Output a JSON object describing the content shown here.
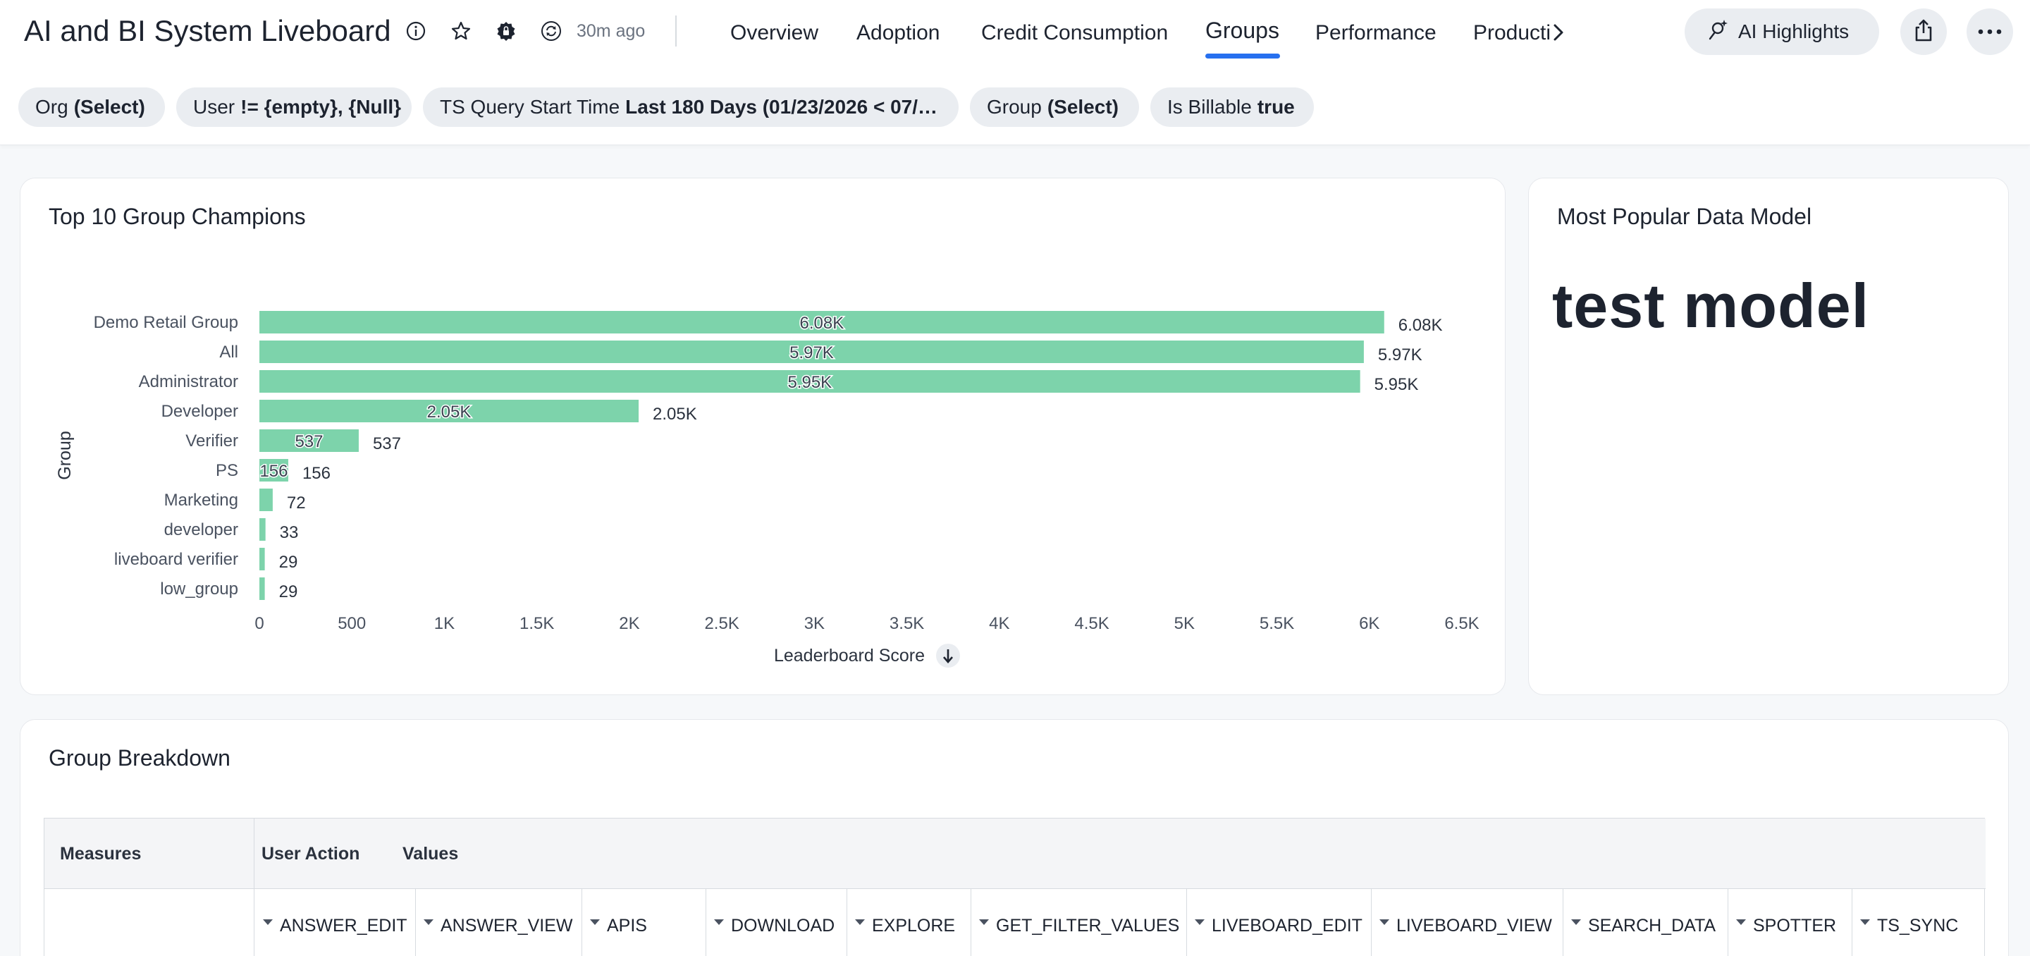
{
  "header": {
    "title": "AI and BI System Liveboard",
    "updated": "30m ago",
    "tabs": [
      {
        "label": "Overview"
      },
      {
        "label": "Adoption"
      },
      {
        "label": "Credit Consumption"
      },
      {
        "label": "Groups"
      },
      {
        "label": "Performance"
      },
      {
        "label": "Producti"
      }
    ],
    "active_tab": "Groups",
    "ai_button": "AI Highlights",
    "accent_color": "#2770ef"
  },
  "filters": [
    {
      "name": "Org",
      "value": "(Select)"
    },
    {
      "name": "User",
      "value": "!= {empty}, {Null}"
    },
    {
      "name": "TS Query Start Time",
      "value": "Last 180 Days (01/23/2026 < 07/…"
    },
    {
      "name": "Group",
      "value": "(Select)"
    },
    {
      "name": "Is Billable",
      "value": "true"
    }
  ],
  "champions": {
    "title": "Top 10 Group Champions",
    "chart_data": {
      "type": "bar",
      "orientation": "horizontal",
      "categories": [
        "Demo Retail Group",
        "All",
        "Administrator",
        "Developer",
        "Verifier",
        "PS",
        "Marketing",
        "developer",
        "liveboard verifier",
        "low_group"
      ],
      "values": [
        6080,
        5970,
        5950,
        2050,
        537,
        156,
        72,
        33,
        29,
        29
      ],
      "labels": [
        "6.08K",
        "5.97K",
        "5.95K",
        "2.05K",
        "537",
        "156",
        "72",
        "33",
        "29",
        "29"
      ],
      "xlabel": "Leaderboard Score",
      "ylabel": "Group",
      "xlim": [
        0,
        6500
      ],
      "xticks": [
        "0",
        "500",
        "1K",
        "1.5K",
        "2K",
        "2.5K",
        "3K",
        "3.5K",
        "4K",
        "4.5K",
        "5K",
        "5.5K",
        "6K",
        "6.5K"
      ],
      "bar_color": "#7dd3ab",
      "sort": "descending"
    }
  },
  "popular_model": {
    "title": "Most Popular Data Model",
    "value": "test model"
  },
  "breakdown": {
    "title": "Group Breakdown",
    "headers": {
      "measures": "Measures",
      "user_action": "User Action",
      "values": "Values"
    },
    "columns": [
      "ANSWER_EDIT",
      "ANSWER_VIEW",
      "APIS",
      "DOWNLOAD",
      "EXPLORE",
      "GET_FILTER_VALUES",
      "LIVEBOARD_EDIT",
      "LIVEBOARD_VIEW",
      "SEARCH_DATA",
      "SPOTTER",
      "TS_SYNC"
    ]
  }
}
